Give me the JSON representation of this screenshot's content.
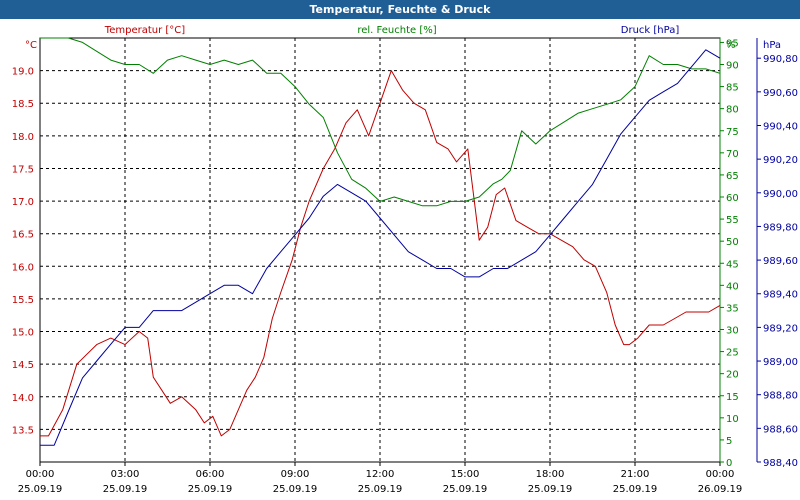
{
  "window": {
    "title": "Temperatur, Feuchte & Druck"
  },
  "chart_data": {
    "type": "line",
    "title": "Temperatur, Feuchte & Druck",
    "grid": true,
    "colors": {
      "temperature": "#c00000",
      "humidity": "#008000",
      "pressure": "#0000a0"
    },
    "x_ticks": [
      {
        "time": "00:00",
        "date": "25.09.19"
      },
      {
        "time": "03:00",
        "date": "25.09.19"
      },
      {
        "time": "06:00",
        "date": "25.09.19"
      },
      {
        "time": "09:00",
        "date": "25.09.19"
      },
      {
        "time": "12:00",
        "date": "25.09.19"
      },
      {
        "time": "15:00",
        "date": "25.09.19"
      },
      {
        "time": "18:00",
        "date": "25.09.19"
      },
      {
        "time": "21:00",
        "date": "25.09.19"
      },
      {
        "time": "00:00",
        "date": "26.09.19"
      }
    ],
    "xlim_hours": [
      0,
      24
    ],
    "axes": {
      "temperature": {
        "label": "Temperatur [°C]",
        "unit": "°C",
        "ylim": [
          13.0,
          19.5
        ],
        "ticks": [
          "13.5",
          "14.0",
          "14.5",
          "15.0",
          "15.5",
          "16.0",
          "16.5",
          "17.0",
          "17.5",
          "18.0",
          "18.5",
          "19.0"
        ]
      },
      "humidity": {
        "label": "rel. Feuchte [%]",
        "unit": "%",
        "ylim": [
          0,
          96
        ],
        "ticks": [
          "0",
          "5",
          "10",
          "15",
          "20",
          "25",
          "30",
          "35",
          "40",
          "45",
          "50",
          "55",
          "60",
          "65",
          "70",
          "75",
          "80",
          "85",
          "90",
          "95"
        ]
      },
      "pressure": {
        "label": "Druck [hPa]",
        "unit": "hPa",
        "ylim": [
          988.4,
          990.92
        ],
        "ticks": [
          "988,40",
          "988,60",
          "988,80",
          "989,00",
          "989,20",
          "989,40",
          "989,60",
          "989,80",
          "990,00",
          "990,20",
          "990,40",
          "990,60",
          "990,80"
        ]
      }
    },
    "series": [
      {
        "name": "Temperatur [°C]",
        "axis": "temperature",
        "x": [
          0.0,
          0.3,
          0.8,
          1.3,
          2.0,
          2.5,
          3.0,
          3.5,
          3.8,
          4.0,
          4.3,
          4.6,
          5.0,
          5.5,
          5.8,
          6.1,
          6.4,
          6.7,
          7.0,
          7.3,
          7.6,
          7.9,
          8.2,
          8.5,
          8.9,
          9.2,
          9.5,
          10.0,
          10.4,
          10.8,
          11.2,
          11.6,
          12.0,
          12.4,
          12.8,
          13.2,
          13.6,
          14.0,
          14.4,
          14.7,
          15.1,
          15.5,
          15.8,
          16.1,
          16.4,
          16.8,
          17.2,
          17.6,
          18.0,
          18.4,
          18.8,
          19.2,
          19.6,
          20.0,
          20.3,
          20.6,
          20.8,
          21.1,
          21.5,
          22.0,
          22.4,
          22.8,
          23.2,
          23.6,
          24.0
        ],
        "values": [
          13.4,
          13.4,
          13.8,
          14.5,
          14.8,
          14.9,
          14.8,
          15.0,
          14.9,
          14.3,
          14.1,
          13.9,
          14.0,
          13.8,
          13.6,
          13.7,
          13.4,
          13.5,
          13.8,
          14.1,
          14.3,
          14.6,
          15.2,
          15.6,
          16.1,
          16.6,
          17.0,
          17.5,
          17.8,
          18.2,
          18.4,
          18.0,
          18.5,
          19.0,
          18.7,
          18.5,
          18.4,
          17.9,
          17.8,
          17.6,
          17.8,
          16.4,
          16.6,
          17.1,
          17.2,
          16.7,
          16.6,
          16.5,
          16.5,
          16.4,
          16.3,
          16.1,
          16.0,
          15.6,
          15.1,
          14.8,
          14.8,
          14.9,
          15.1,
          15.1,
          15.2,
          15.3,
          15.3,
          15.3,
          15.4
        ]
      },
      {
        "name": "rel. Feuchte [%]",
        "axis": "humidity",
        "x": [
          0.0,
          1.0,
          1.5,
          2.0,
          2.5,
          3.0,
          3.5,
          4.0,
          4.5,
          5.0,
          5.5,
          6.0,
          6.5,
          7.0,
          7.5,
          8.0,
          8.5,
          9.0,
          9.5,
          10.0,
          10.5,
          11.0,
          11.5,
          12.0,
          12.5,
          13.0,
          13.5,
          14.0,
          14.5,
          15.0,
          15.5,
          16.0,
          16.3,
          16.6,
          17.0,
          17.5,
          18.0,
          18.5,
          19.0,
          19.5,
          20.0,
          20.5,
          21.0,
          21.5,
          22.0,
          22.5,
          23.0,
          23.5,
          24.0
        ],
        "values": [
          96,
          96,
          95,
          93,
          91,
          90,
          90,
          88,
          91,
          92,
          91,
          90,
          91,
          90,
          91,
          88,
          88,
          85,
          81,
          78,
          70,
          64,
          62,
          59,
          60,
          59,
          58,
          58,
          59,
          59,
          60,
          63,
          64,
          66,
          75,
          72,
          75,
          77,
          79,
          80,
          81,
          82,
          85,
          92,
          90,
          90,
          89,
          89,
          88
        ]
      },
      {
        "name": "Druck [hPa]",
        "axis": "pressure",
        "x": [
          0.0,
          0.5,
          1.0,
          1.5,
          2.0,
          2.5,
          3.0,
          3.5,
          4.0,
          4.5,
          5.0,
          5.5,
          6.0,
          6.5,
          7.0,
          7.5,
          8.0,
          8.5,
          9.0,
          9.5,
          10.0,
          10.5,
          11.0,
          11.5,
          12.0,
          12.5,
          13.0,
          13.5,
          14.0,
          14.5,
          15.0,
          15.5,
          16.0,
          16.5,
          17.0,
          17.5,
          18.0,
          18.5,
          19.0,
          19.5,
          20.0,
          20.5,
          21.0,
          21.5,
          22.0,
          22.5,
          23.0,
          23.5,
          24.0
        ],
        "values": [
          988.5,
          988.5,
          988.7,
          988.9,
          989.0,
          989.1,
          989.2,
          989.2,
          989.3,
          989.3,
          989.3,
          989.35,
          989.4,
          989.45,
          989.45,
          989.4,
          989.55,
          989.65,
          989.75,
          989.85,
          989.98,
          990.05,
          990.0,
          989.95,
          989.85,
          989.75,
          989.65,
          989.6,
          989.55,
          989.55,
          989.5,
          989.5,
          989.55,
          989.55,
          989.6,
          989.65,
          989.75,
          989.85,
          989.95,
          990.05,
          990.2,
          990.35,
          990.45,
          990.55,
          990.6,
          990.65,
          990.75,
          990.85,
          990.8
        ]
      }
    ]
  }
}
